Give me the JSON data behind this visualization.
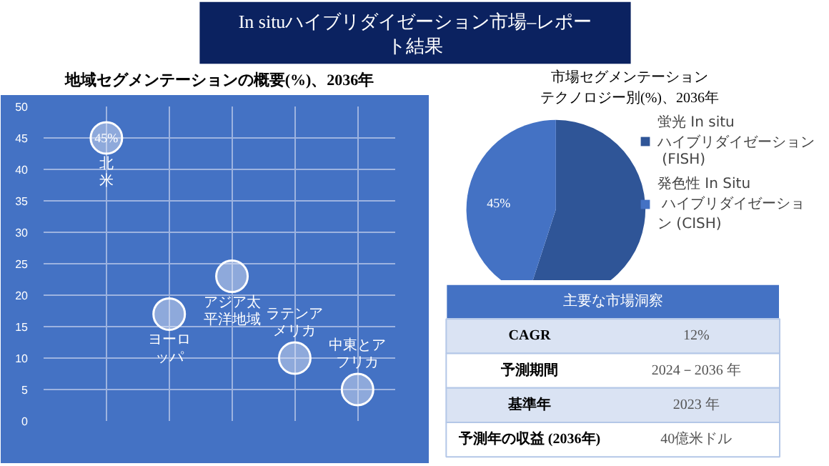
{
  "chart_data": [
    {
      "type": "bubble",
      "title": "In situハイブリダイゼーション市場–レポート結果",
      "subtitle": "地域セグメンテーションの概要(%)、2036年",
      "categories": [
        "北米",
        "ヨーロッパ",
        "アジア太平洋地域",
        "ラテンアメリカ",
        "中東とアフリカ"
      ],
      "values": [
        45,
        17,
        23,
        10,
        5
      ],
      "sizes": [
        1,
        1,
        1,
        1,
        1
      ],
      "value_labels": [
        "45%",
        null,
        null,
        null,
        null
      ],
      "color": "#e8eef8",
      "ylim": [
        0,
        50
      ],
      "yticks": [
        0,
        5,
        10,
        15,
        20,
        25,
        30,
        35,
        40,
        45,
        50
      ],
      "grid": true,
      "tick_labels": "y"
    },
    {
      "type": "pie",
      "title": "市場セグメンテーションテクノロジー別(%)、2036年",
      "categories": [
        "蛍光 In situ ハイブリダイゼーション (FISH)",
        "発色性 In Situ ハイブリダイゼーション (CISH)"
      ],
      "values": [
        55,
        45
      ],
      "colors": [
        "#2f5597",
        "#4472c4"
      ],
      "value_labels": [
        null,
        "45%"
      ],
      "legend": "right"
    },
    {
      "type": "other",
      "title": "主要な市場洞察",
      "annotations": [
        "CAGR",
        "12%",
        "予測期間",
        "2024－2036 年",
        "基準年",
        "2023 年",
        "予測年の収益 (2036年)",
        "40億米ドル"
      ]
    }
  ]
}
